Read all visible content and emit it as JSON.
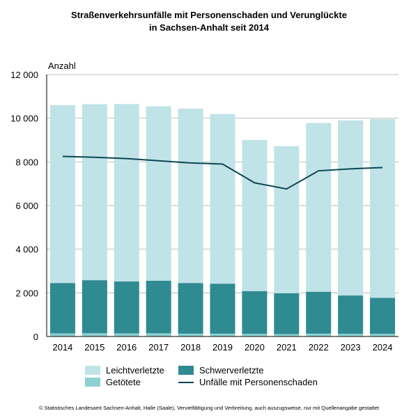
{
  "title_line1": "Straßenverkehrsunfälle mit Personenschaden und Verunglückte",
  "title_line2": "in Sachsen-Anhalt seit 2014",
  "footer": "© Statistisches Landesamt Sachsen-Anhalt, Halle (Saale), Vervielfältigung und Verbreitung, auch auszugsweise, nur mit Quellenangabe gestattet",
  "chart_data": {
    "type": "bar",
    "stacked": true,
    "ylabel": "Anzahl",
    "ylim": [
      0,
      12000
    ],
    "yticks": [
      0,
      2000,
      4000,
      6000,
      8000,
      10000,
      12000
    ],
    "ytick_labels": [
      "0",
      "2 000",
      "4 000",
      "6 000",
      "8 000",
      "10 000",
      "12 000"
    ],
    "grid": true,
    "categories": [
      "2014",
      "2015",
      "2016",
      "2017",
      "2018",
      "2019",
      "2020",
      "2021",
      "2022",
      "2023",
      "2024"
    ],
    "series": [
      {
        "name": "Getötete",
        "kind": "bar",
        "color": "#8ed1d2",
        "values": [
          140,
          150,
          140,
          145,
          130,
          130,
          120,
          110,
          130,
          120,
          120
        ]
      },
      {
        "name": "Schwerverletzte",
        "kind": "bar",
        "color": "#2f8a92",
        "values": [
          2310,
          2430,
          2380,
          2410,
          2320,
          2290,
          1960,
          1870,
          1920,
          1760,
          1650
        ]
      },
      {
        "name": "Leichtverletzte",
        "kind": "bar",
        "color": "#bfe3e7",
        "values": [
          8150,
          8060,
          8130,
          7990,
          7990,
          7770,
          6920,
          6740,
          7730,
          8020,
          8190
        ]
      },
      {
        "name": "Unfälle mit Personenschaden",
        "kind": "line",
        "color": "#0d4654",
        "values": [
          8250,
          8210,
          8150,
          8050,
          7950,
          7900,
          7040,
          6760,
          7590,
          7680,
          7740
        ]
      }
    ],
    "legend_order": [
      "Leichtverletzte",
      "Schwerverletzte",
      "Getötete",
      "Unfälle mit Personenschaden"
    ],
    "legend_position": "bottom"
  }
}
